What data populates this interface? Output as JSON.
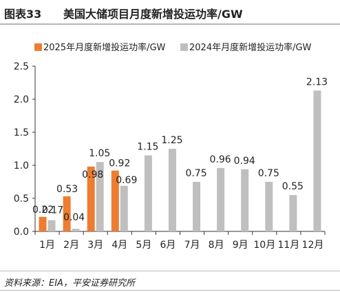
{
  "header": {
    "figure_label": "图表33",
    "title": "美国大储项目月度新增投运功率/GW"
  },
  "source": "资料来源：EIA，平安证券研究所",
  "colors": {
    "series_2025": "#ed7d31",
    "series_2024": "#bfbfbf",
    "axis": "#333333",
    "text": "#222222"
  },
  "chart_data": {
    "type": "bar",
    "title": "美国大储项目月度新增投运功率/GW",
    "xlabel": "",
    "ylabel": "",
    "ylim": [
      0,
      2.5
    ],
    "yticks": [
      "0.0",
      "0.5",
      "1.0",
      "1.5",
      "2.0",
      "2.5"
    ],
    "grid": false,
    "legend_position": "top-left",
    "categories": [
      "1月",
      "2月",
      "3月",
      "4月",
      "5月",
      "6月",
      "7月",
      "8月",
      "9月",
      "10月",
      "11月",
      "12月"
    ],
    "series": [
      {
        "name": "2025年月度新增投运功率/GW",
        "color": "#ed7d31",
        "values": [
          0.22,
          0.53,
          0.98,
          0.92,
          null,
          null,
          null,
          null,
          null,
          null,
          null,
          null
        ],
        "labels": [
          "0.22",
          "0.53",
          "0.98",
          "0.92",
          "",
          "",
          "",
          "",
          "",
          "",
          "",
          ""
        ]
      },
      {
        "name": "2024年月度新增投运功率/GW",
        "color": "#bfbfbf",
        "values": [
          0.17,
          0.04,
          1.05,
          0.69,
          1.15,
          1.25,
          0.75,
          0.96,
          0.94,
          0.75,
          0.55,
          2.13
        ],
        "labels": [
          "0.17",
          "0.04",
          "1.05",
          "0.69",
          "1.15",
          "1.25",
          "0.75",
          "0.96",
          "0.94",
          "0.75",
          "0.55",
          "2.13"
        ]
      }
    ]
  }
}
